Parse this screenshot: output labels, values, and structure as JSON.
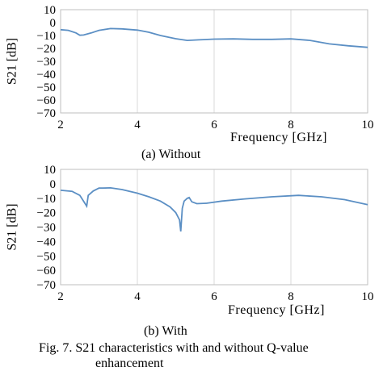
{
  "chart_data": [
    {
      "type": "line",
      "caption": "(a) Without",
      "xlabel": "Frequency [GHz]",
      "ylabel": "S21 [dB]",
      "xlim": [
        2,
        10
      ],
      "ylim": [
        -70,
        10
      ],
      "x_ticks": [
        "2",
        "4",
        "6",
        "8",
        "10"
      ],
      "y_ticks": [
        "10",
        "0",
        "−10",
        "−20",
        "−30",
        "−40",
        "−50",
        "−60",
        "−70"
      ],
      "grid": "vertical",
      "color": "#5b8fc4",
      "series": [
        {
          "x": [
            2.0,
            2.2,
            2.4,
            2.5,
            2.6,
            2.8,
            3.0,
            3.3,
            3.6,
            4.0,
            4.3,
            4.6,
            5.0,
            5.3,
            5.6,
            6.0,
            6.5,
            7.0,
            7.5,
            8.0,
            8.5,
            9.0,
            9.5,
            10.0
          ],
          "y": [
            -5.5,
            -6,
            -8,
            -9.8,
            -9.6,
            -8,
            -6,
            -4.6,
            -4.9,
            -5.8,
            -7.5,
            -10,
            -12.5,
            -13.8,
            -13.4,
            -12.8,
            -12.6,
            -13,
            -13,
            -12.6,
            -13.8,
            -16.5,
            -18,
            -19.2
          ]
        }
      ]
    },
    {
      "type": "line",
      "caption": "(b) With",
      "xlabel": "Frequency [GHz]",
      "ylabel": "S21 [dB]",
      "xlim": [
        2,
        10
      ],
      "ylim": [
        -70,
        10
      ],
      "x_ticks": [
        "2",
        "4",
        "6",
        "8",
        "10"
      ],
      "y_ticks": [
        "10",
        "0",
        "−10",
        "−20",
        "−30",
        "−40",
        "−50",
        "−60",
        "−70"
      ],
      "grid": "vertical",
      "color": "#5b8fc4",
      "series": [
        {
          "x": [
            2.0,
            2.3,
            2.5,
            2.62,
            2.68,
            2.72,
            2.85,
            3.0,
            3.1,
            3.3,
            3.6,
            4.0,
            4.3,
            4.6,
            4.85,
            5.0,
            5.1,
            5.13,
            5.17,
            5.22,
            5.3,
            5.35,
            5.42,
            5.55,
            5.8,
            6.2,
            6.8,
            7.5,
            8.2,
            8.8,
            9.4,
            10.0
          ],
          "y": [
            -4.5,
            -5.2,
            -8,
            -13,
            -15.5,
            -8,
            -5,
            -3,
            -3,
            -2.8,
            -4,
            -6.5,
            -9,
            -12,
            -16,
            -20,
            -25,
            -33,
            -17,
            -12,
            -10,
            -9.5,
            -12.5,
            -13.8,
            -13.5,
            -12,
            -10.5,
            -9,
            -8,
            -9,
            -11,
            -14.5
          ]
        }
      ]
    }
  ],
  "figure_caption_line1": "Fig. 7. S21 characteristics with and without Q-value",
  "figure_caption_line2": "enhancement"
}
